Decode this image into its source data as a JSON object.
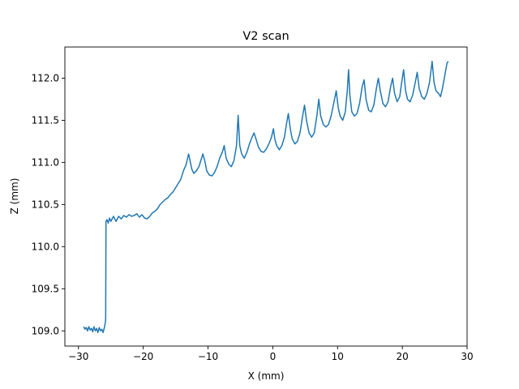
{
  "chart_data": {
    "type": "line",
    "title": "V2 scan",
    "xlabel": "X (mm)",
    "ylabel": "Z (mm)",
    "xlim": [
      -32.1,
      30.0
    ],
    "ylim": [
      108.82,
      112.37
    ],
    "xticks": [
      -30,
      -20,
      -10,
      0,
      10,
      20,
      30
    ],
    "xtick_labels": [
      "−30",
      "−20",
      "−10",
      "0",
      "10",
      "20",
      "30"
    ],
    "yticks": [
      109.0,
      109.5,
      110.0,
      110.5,
      111.0,
      111.5,
      112.0
    ],
    "ytick_labels": [
      "109.0",
      "109.5",
      "110.0",
      "110.5",
      "111.0",
      "111.5",
      "112.0"
    ],
    "grid": false,
    "series": [
      {
        "color": "#1f77b4",
        "points": [
          [
            -29.2,
            109.05
          ],
          [
            -29.0,
            109.02
          ],
          [
            -28.8,
            109.04
          ],
          [
            -28.6,
            109.0
          ],
          [
            -28.4,
            109.05
          ],
          [
            -28.2,
            109.01
          ],
          [
            -28.0,
            109.03
          ],
          [
            -27.8,
            108.99
          ],
          [
            -27.6,
            109.05
          ],
          [
            -27.4,
            109.0
          ],
          [
            -27.2,
            109.03
          ],
          [
            -27.0,
            108.98
          ],
          [
            -26.8,
            109.04
          ],
          [
            -26.6,
            109.0
          ],
          [
            -26.4,
            109.02
          ],
          [
            -26.2,
            108.98
          ],
          [
            -26.0,
            109.04
          ],
          [
            -25.85,
            109.1
          ],
          [
            -25.8,
            109.15
          ],
          [
            -25.75,
            110.3
          ],
          [
            -25.6,
            110.32
          ],
          [
            -25.4,
            110.28
          ],
          [
            -25.2,
            110.34
          ],
          [
            -25.0,
            110.3
          ],
          [
            -24.6,
            110.36
          ],
          [
            -24.2,
            110.3
          ],
          [
            -23.8,
            110.36
          ],
          [
            -23.4,
            110.33
          ],
          [
            -23.0,
            110.37
          ],
          [
            -22.6,
            110.35
          ],
          [
            -22.2,
            110.38
          ],
          [
            -21.8,
            110.36
          ],
          [
            -21.4,
            110.37
          ],
          [
            -21.0,
            110.39
          ],
          [
            -20.6,
            110.35
          ],
          [
            -20.2,
            110.38
          ],
          [
            -19.8,
            110.34
          ],
          [
            -19.4,
            110.33
          ],
          [
            -19.0,
            110.36
          ],
          [
            -18.6,
            110.4
          ],
          [
            -18.2,
            110.42
          ],
          [
            -17.8,
            110.45
          ],
          [
            -17.4,
            110.5
          ],
          [
            -17.0,
            110.53
          ],
          [
            -16.6,
            110.56
          ],
          [
            -16.2,
            110.58
          ],
          [
            -15.8,
            110.62
          ],
          [
            -15.4,
            110.65
          ],
          [
            -15.0,
            110.7
          ],
          [
            -14.6,
            110.75
          ],
          [
            -14.2,
            110.8
          ],
          [
            -13.8,
            110.9
          ],
          [
            -13.4,
            110.97
          ],
          [
            -13.0,
            111.1
          ],
          [
            -12.8,
            111.03
          ],
          [
            -12.5,
            110.92
          ],
          [
            -12.2,
            110.87
          ],
          [
            -11.8,
            110.9
          ],
          [
            -11.4,
            110.95
          ],
          [
            -11.0,
            111.05
          ],
          [
            -10.8,
            111.1
          ],
          [
            -10.5,
            111.02
          ],
          [
            -10.2,
            110.9
          ],
          [
            -9.8,
            110.85
          ],
          [
            -9.4,
            110.84
          ],
          [
            -9.0,
            110.88
          ],
          [
            -8.6,
            110.95
          ],
          [
            -8.2,
            111.05
          ],
          [
            -7.8,
            111.12
          ],
          [
            -7.5,
            111.2
          ],
          [
            -7.2,
            111.05
          ],
          [
            -6.8,
            110.98
          ],
          [
            -6.4,
            110.95
          ],
          [
            -6.0,
            111.02
          ],
          [
            -5.6,
            111.2
          ],
          [
            -5.35,
            111.56
          ],
          [
            -5.1,
            111.2
          ],
          [
            -4.8,
            111.1
          ],
          [
            -4.4,
            111.05
          ],
          [
            -4.0,
            111.12
          ],
          [
            -3.6,
            111.22
          ],
          [
            -3.2,
            111.3
          ],
          [
            -2.9,
            111.35
          ],
          [
            -2.6,
            111.28
          ],
          [
            -2.2,
            111.18
          ],
          [
            -1.8,
            111.13
          ],
          [
            -1.4,
            111.12
          ],
          [
            -1.0,
            111.16
          ],
          [
            -0.6,
            111.22
          ],
          [
            -0.2,
            111.3
          ],
          [
            0.1,
            111.4
          ],
          [
            0.3,
            111.28
          ],
          [
            0.6,
            111.2
          ],
          [
            1.0,
            111.15
          ],
          [
            1.4,
            111.2
          ],
          [
            1.8,
            111.3
          ],
          [
            2.1,
            111.45
          ],
          [
            2.4,
            111.58
          ],
          [
            2.7,
            111.4
          ],
          [
            3.0,
            111.28
          ],
          [
            3.4,
            111.22
          ],
          [
            3.8,
            111.25
          ],
          [
            4.2,
            111.35
          ],
          [
            4.6,
            111.55
          ],
          [
            4.9,
            111.68
          ],
          [
            5.2,
            111.5
          ],
          [
            5.6,
            111.35
          ],
          [
            6.0,
            111.3
          ],
          [
            6.4,
            111.35
          ],
          [
            6.8,
            111.55
          ],
          [
            7.1,
            111.75
          ],
          [
            7.4,
            111.55
          ],
          [
            7.8,
            111.45
          ],
          [
            8.2,
            111.42
          ],
          [
            8.6,
            111.45
          ],
          [
            9.0,
            111.55
          ],
          [
            9.4,
            111.7
          ],
          [
            9.8,
            111.85
          ],
          [
            10.1,
            111.65
          ],
          [
            10.4,
            111.55
          ],
          [
            10.8,
            111.5
          ],
          [
            11.2,
            111.6
          ],
          [
            11.5,
            111.85
          ],
          [
            11.7,
            112.1
          ],
          [
            11.9,
            111.8
          ],
          [
            12.2,
            111.6
          ],
          [
            12.6,
            111.55
          ],
          [
            13.0,
            111.58
          ],
          [
            13.4,
            111.7
          ],
          [
            13.8,
            111.9
          ],
          [
            14.1,
            111.98
          ],
          [
            14.4,
            111.75
          ],
          [
            14.8,
            111.62
          ],
          [
            15.2,
            111.6
          ],
          [
            15.6,
            111.68
          ],
          [
            16.0,
            111.88
          ],
          [
            16.3,
            112.0
          ],
          [
            16.6,
            111.85
          ],
          [
            17.0,
            111.7
          ],
          [
            17.4,
            111.66
          ],
          [
            17.8,
            111.72
          ],
          [
            18.2,
            111.9
          ],
          [
            18.5,
            112.0
          ],
          [
            18.8,
            111.82
          ],
          [
            19.2,
            111.72
          ],
          [
            19.6,
            111.78
          ],
          [
            19.9,
            111.95
          ],
          [
            20.2,
            112.1
          ],
          [
            20.5,
            111.85
          ],
          [
            20.8,
            111.75
          ],
          [
            21.2,
            111.72
          ],
          [
            21.6,
            111.8
          ],
          [
            22.0,
            111.95
          ],
          [
            22.3,
            112.07
          ],
          [
            22.6,
            111.88
          ],
          [
            23.0,
            111.78
          ],
          [
            23.4,
            111.75
          ],
          [
            23.8,
            111.82
          ],
          [
            24.2,
            111.95
          ],
          [
            24.6,
            112.2
          ],
          [
            24.9,
            111.95
          ],
          [
            25.2,
            111.85
          ],
          [
            25.6,
            111.82
          ],
          [
            25.9,
            111.78
          ],
          [
            26.2,
            111.88
          ],
          [
            26.6,
            112.05
          ],
          [
            26.9,
            112.18
          ],
          [
            27.1,
            112.2
          ]
        ]
      }
    ]
  }
}
